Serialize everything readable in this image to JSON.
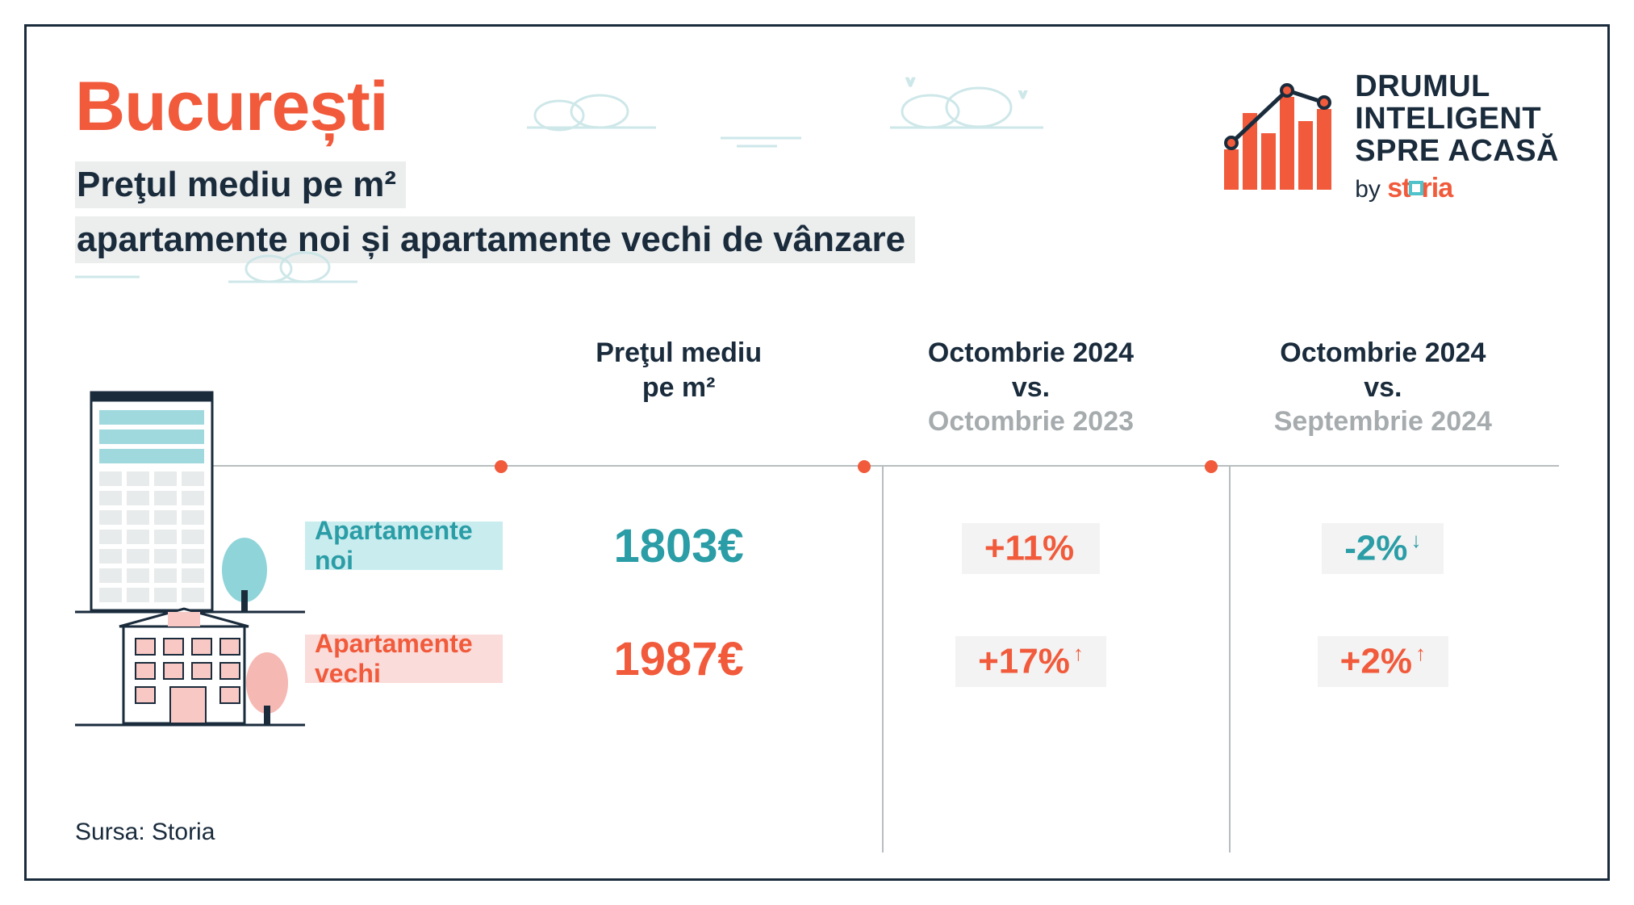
{
  "colors": {
    "orange": "#f15a3b",
    "dark": "#1a2b3c",
    "teal": "#2a9da6",
    "teal_bg": "#c9ecef",
    "pink_bg": "#fadcda",
    "badge_bg": "#f3f3f3",
    "line": "#b8bdbf",
    "faded": "#a6abae",
    "cloud": "#d7e9ea"
  },
  "header": {
    "title": "București",
    "subtitle_line1": "Preţul mediu pe m²",
    "subtitle_line2": "apartamente noi și apartamente vechi de vânzare"
  },
  "logo": {
    "line1": "DRUMUL",
    "line2": "INTELIGENT",
    "line3": "SPRE ACASĂ",
    "by": "by",
    "brand_pre": "st",
    "brand_post": "ria"
  },
  "columns": {
    "c1_l1": "Preţul mediu",
    "c1_l2": "pe m²",
    "c2_l1": "Octombrie 2024",
    "c2_l2": "vs.",
    "c2_l3": "Octombrie 2023",
    "c3_l1": "Octombrie 2024",
    "c3_l2": "vs.",
    "c3_l3": "Septembrie 2024"
  },
  "rows": {
    "new": {
      "label": "Apartamente noi",
      "price": "1803€",
      "yoy": "+11%",
      "yoy_arrow": "",
      "mom": "-2%",
      "mom_arrow": "↓",
      "label_bg": "#c9ecef",
      "text_color": "#2a9da6"
    },
    "old": {
      "label": "Apartamente vechi",
      "price": "1987€",
      "yoy": "+17%",
      "yoy_arrow": "↑",
      "mom": "+2%",
      "mom_arrow": "↑",
      "label_bg": "#fadcda",
      "text_color": "#f15a3b"
    }
  },
  "source": "Sursa: Storia",
  "logo_chart": {
    "bars": [
      50,
      95,
      70,
      115,
      85,
      100
    ],
    "bar_color": "#f15a3b",
    "line_color": "#1a2b3c",
    "dot_color": "#f15a3b"
  }
}
